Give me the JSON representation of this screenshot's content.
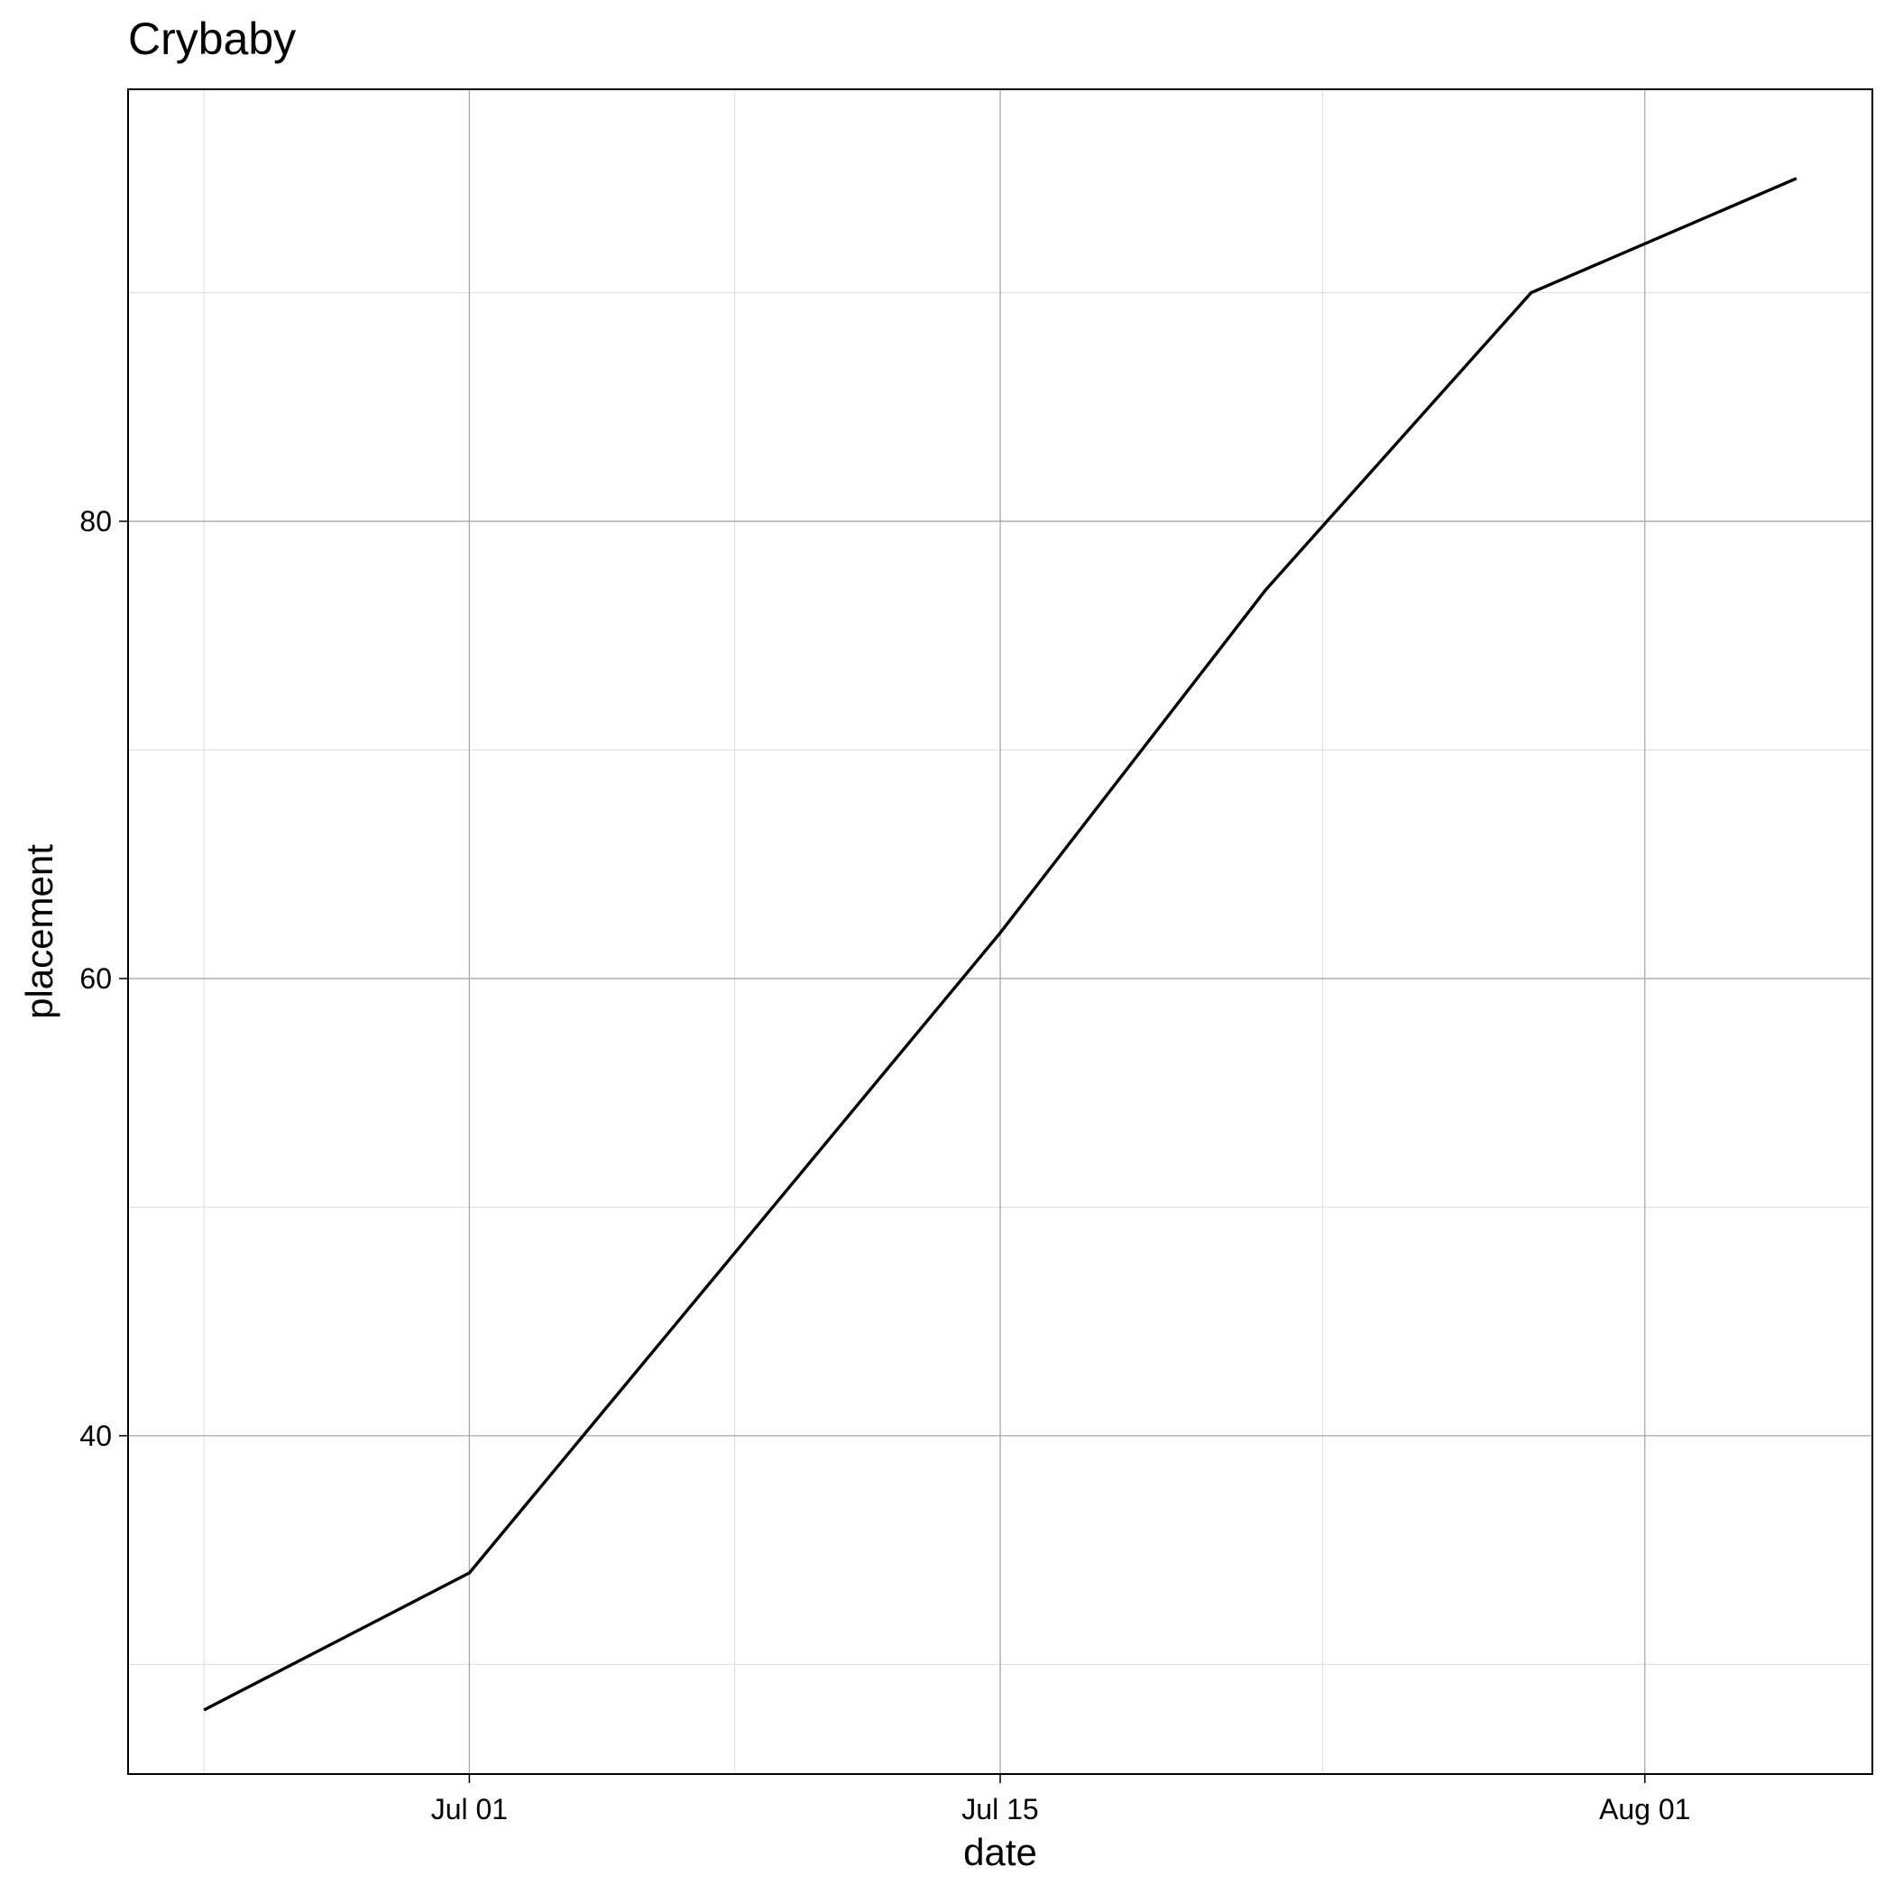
{
  "chart_data": {
    "type": "line",
    "title": "Crybaby",
    "xlabel": "date",
    "ylabel": "placement",
    "x_ticks": [
      {
        "date": "2021-07-01",
        "label": "Jul 01"
      },
      {
        "date": "2021-07-15",
        "label": "Jul 15"
      },
      {
        "date": "2021-08-01",
        "label": "Aug 01"
      }
    ],
    "y_ticks": [
      40,
      60,
      80
    ],
    "xlim": [
      "2021-06-22",
      "2021-08-07"
    ],
    "ylim": [
      25.2,
      98.9
    ],
    "grid": true,
    "legend": "none",
    "series": [
      {
        "color": "#000000",
        "points": [
          {
            "x": "2021-06-24",
            "y": 28
          },
          {
            "x": "2021-07-01",
            "y": 34
          },
          {
            "x": "2021-07-15",
            "y": 62
          },
          {
            "x": "2021-07-22",
            "y": 77
          },
          {
            "x": "2021-07-29",
            "y": 90
          },
          {
            "x": "2021-08-05",
            "y": 95
          }
        ]
      }
    ]
  }
}
